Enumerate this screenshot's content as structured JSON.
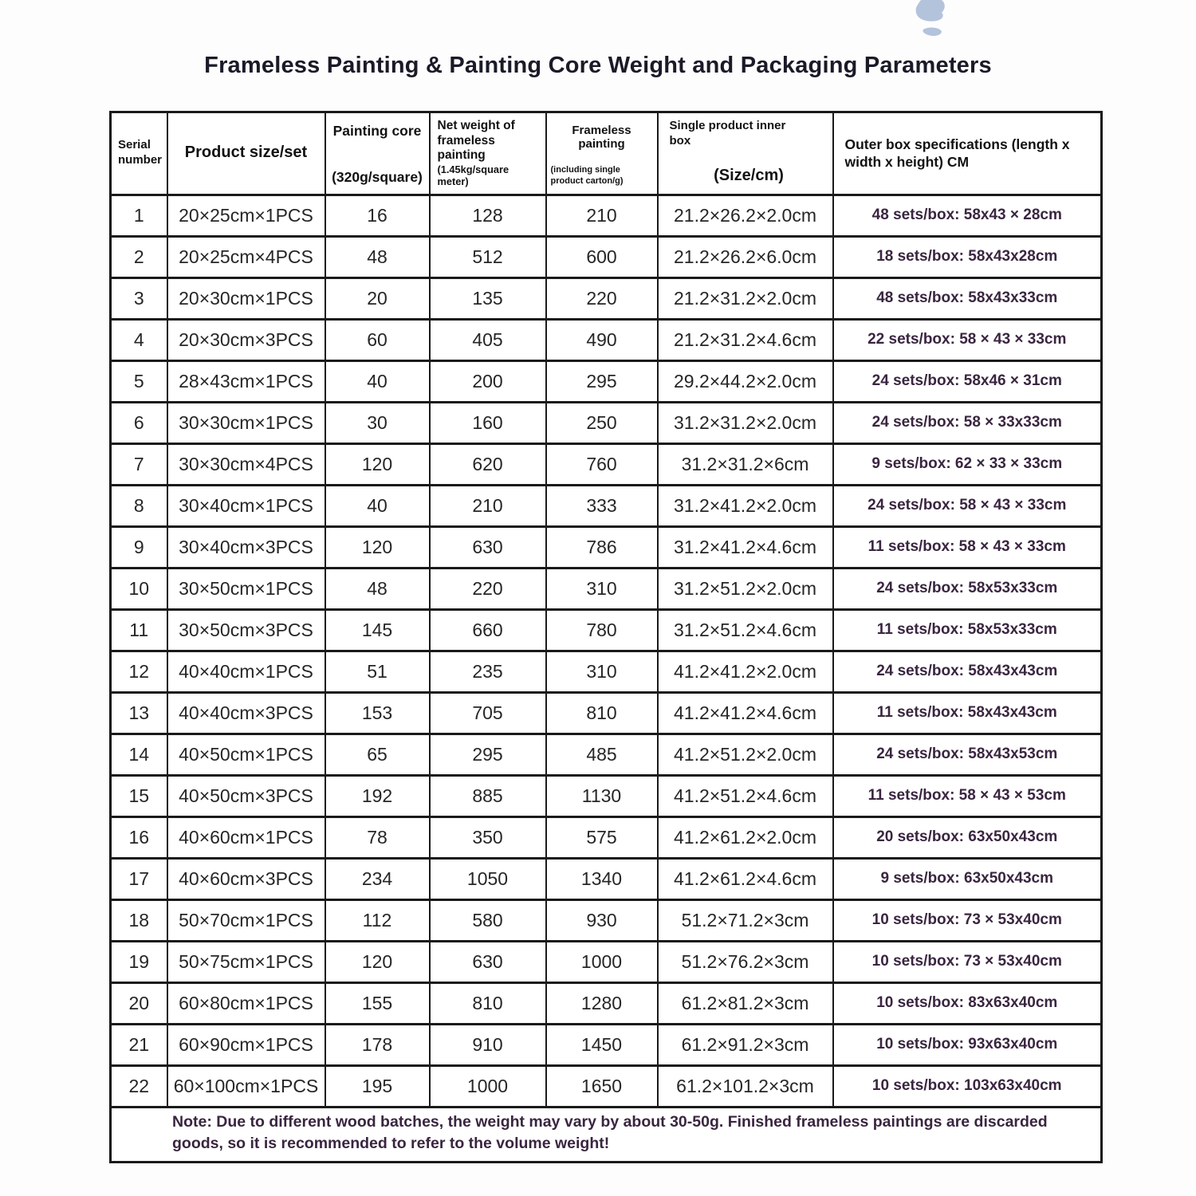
{
  "title": "Frameless Painting & Painting Core Weight and Packaging Parameters",
  "watermark": {
    "icon": "paint-splash",
    "color": "#b4c3dc"
  },
  "table": {
    "headers": [
      {
        "main": "Serial number",
        "sub": ""
      },
      {
        "main": "Product size/set",
        "sub": ""
      },
      {
        "main": "Painting core",
        "sub": "(320g/square)"
      },
      {
        "main": "Net weight of frameless painting",
        "sub": "(1.45kg/square meter)"
      },
      {
        "main": "Frameless painting",
        "sub": "(including single product carton/g)"
      },
      {
        "main": "Single product inner box",
        "sub": "(Size/cm)"
      },
      {
        "main": "Outer box specifications (length x width x height) CM",
        "sub": ""
      }
    ],
    "rows": [
      [
        "1",
        "20×25cm×1PCS",
        "16",
        "128",
        "210",
        "21.2×26.2×2.0cm",
        "48 sets/box: 58x43 × 28cm"
      ],
      [
        "2",
        "20×25cm×4PCS",
        "48",
        "512",
        "600",
        "21.2×26.2×6.0cm",
        "18 sets/box: 58x43x28cm"
      ],
      [
        "3",
        "20×30cm×1PCS",
        "20",
        "135",
        "220",
        "21.2×31.2×2.0cm",
        "48 sets/box: 58x43x33cm"
      ],
      [
        "4",
        "20×30cm×3PCS",
        "60",
        "405",
        "490",
        "21.2×31.2×4.6cm",
        "22 sets/box: 58 × 43 × 33cm"
      ],
      [
        "5",
        "28×43cm×1PCS",
        "40",
        "200",
        "295",
        "29.2×44.2×2.0cm",
        "24 sets/box: 58x46 × 31cm"
      ],
      [
        "6",
        "30×30cm×1PCS",
        "30",
        "160",
        "250",
        "31.2×31.2×2.0cm",
        "24 sets/box: 58 × 33x33cm"
      ],
      [
        "7",
        "30×30cm×4PCS",
        "120",
        "620",
        "760",
        "31.2×31.2×6cm",
        "9 sets/box: 62 × 33 × 33cm"
      ],
      [
        "8",
        "30×40cm×1PCS",
        "40",
        "210",
        "333",
        "31.2×41.2×2.0cm",
        "24 sets/box: 58 × 43 × 33cm"
      ],
      [
        "9",
        "30×40cm×3PCS",
        "120",
        "630",
        "786",
        "31.2×41.2×4.6cm",
        "11 sets/box: 58 × 43 × 33cm"
      ],
      [
        "10",
        "30×50cm×1PCS",
        "48",
        "220",
        "310",
        "31.2×51.2×2.0cm",
        "24 sets/box: 58x53x33cm"
      ],
      [
        "11",
        "30×50cm×3PCS",
        "145",
        "660",
        "780",
        "31.2×51.2×4.6cm",
        "11 sets/box: 58x53x33cm"
      ],
      [
        "12",
        "40×40cm×1PCS",
        "51",
        "235",
        "310",
        "41.2×41.2×2.0cm",
        "24 sets/box: 58x43x43cm"
      ],
      [
        "13",
        "40×40cm×3PCS",
        "153",
        "705",
        "810",
        "41.2×41.2×4.6cm",
        "11 sets/box: 58x43x43cm"
      ],
      [
        "14",
        "40×50cm×1PCS",
        "65",
        "295",
        "485",
        "41.2×51.2×2.0cm",
        "24 sets/box: 58x43x53cm"
      ],
      [
        "15",
        "40×50cm×3PCS",
        "192",
        "885",
        "1130",
        "41.2×51.2×4.6cm",
        "11 sets/box: 58 × 43 × 53cm"
      ],
      [
        "16",
        "40×60cm×1PCS",
        "78",
        "350",
        "575",
        "41.2×61.2×2.0cm",
        "20 sets/box: 63x50x43cm"
      ],
      [
        "17",
        "40×60cm×3PCS",
        "234",
        "1050",
        "1340",
        "41.2×61.2×4.6cm",
        "9 sets/box: 63x50x43cm"
      ],
      [
        "18",
        "50×70cm×1PCS",
        "112",
        "580",
        "930",
        "51.2×71.2×3cm",
        "10 sets/box: 73 × 53x40cm"
      ],
      [
        "19",
        "50×75cm×1PCS",
        "120",
        "630",
        "1000",
        "51.2×76.2×3cm",
        "10 sets/box: 73 × 53x40cm"
      ],
      [
        "20",
        "60×80cm×1PCS",
        "155",
        "810",
        "1280",
        "61.2×81.2×3cm",
        "10 sets/box: 83x63x40cm"
      ],
      [
        "21",
        "60×90cm×1PCS",
        "178",
        "910",
        "1450",
        "61.2×91.2×3cm",
        "10 sets/box: 93x63x40cm"
      ],
      [
        "22",
        "60×100cm×1PCS",
        "195",
        "1000",
        "1650",
        "61.2×101.2×3cm",
        "10 sets/box: 103x63x40cm"
      ]
    ],
    "note": "Note: Due to different wood batches, the weight may vary by about 30-50g. Finished frameless paintings are discarded goods, so it is recommended to refer to the volume weight!"
  }
}
